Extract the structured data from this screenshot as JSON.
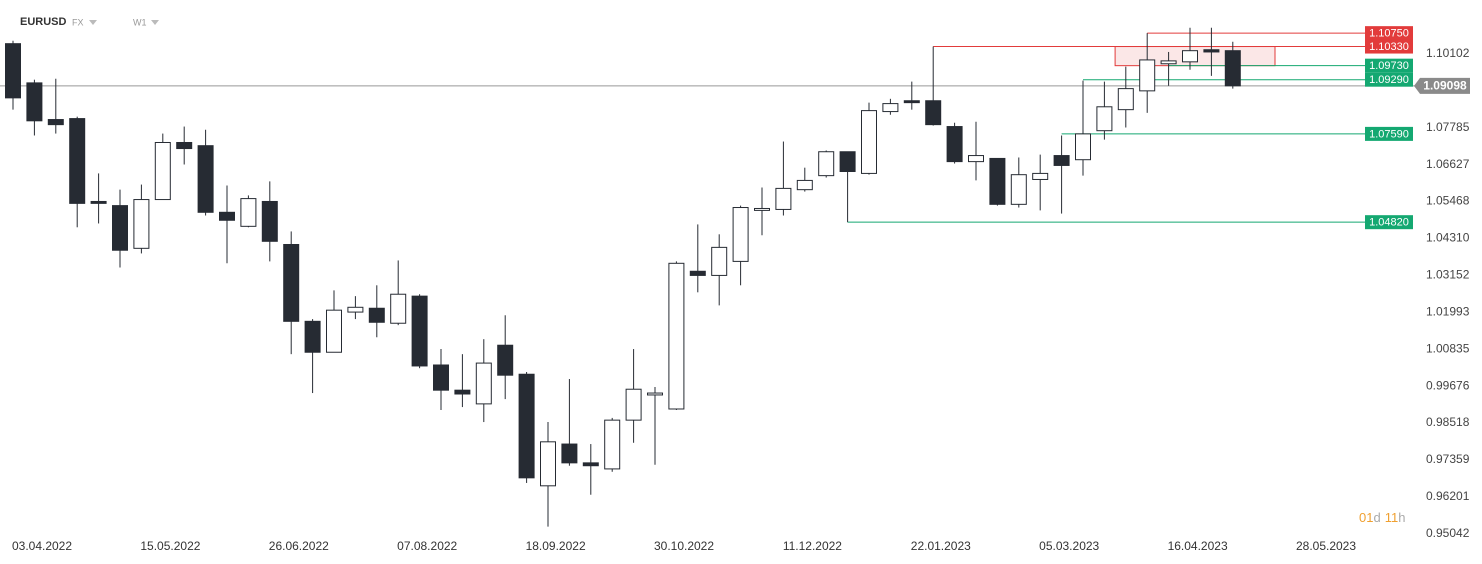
{
  "header": {
    "symbol": "EURUSD",
    "market": "FX",
    "interval": "W1"
  },
  "countdown": [
    "01",
    "d",
    "11",
    "h"
  ],
  "chart_data": {
    "type": "candlestick",
    "categories": [
      null,
      "03.04.2022",
      null,
      null,
      null,
      null,
      null,
      "15.05.2022",
      null,
      null,
      null,
      null,
      null,
      "26.06.2022",
      null,
      null,
      null,
      null,
      null,
      "07.08.2022",
      null,
      null,
      null,
      null,
      null,
      "18.09.2022",
      null,
      null,
      null,
      null,
      null,
      "30.10.2022",
      null,
      null,
      null,
      null,
      null,
      "11.12.2022",
      null,
      null,
      null,
      null,
      null,
      "22.01.2023",
      null,
      null,
      null,
      null,
      null,
      "05.03.2023",
      null,
      null,
      null,
      null,
      null,
      "16.04.2023",
      null,
      null,
      null,
      null,
      null,
      "28.05.2023"
    ],
    "open": [
      1.1042,
      1.0919,
      1.0804,
      1.0807,
      1.0547,
      1.0534,
      1.04,
      1.0553,
      1.0732,
      1.0722,
      1.0513,
      1.0469,
      1.0547,
      1.0412,
      1.0171,
      1.0074,
      1.02,
      1.0212,
      1.0165,
      1.025,
      1.0034,
      0.9955,
      0.9912,
      1.0096,
      1.0005,
      0.9655,
      0.9786,
      0.9727,
      0.9708,
      0.9861,
      0.994,
      0.9896,
      1.0328,
      1.0315,
      1.0359,
      1.0519,
      1.0522,
      1.0584,
      1.0628,
      1.0703,
      1.0635,
      1.0829,
      1.0863,
      1.0863,
      1.0782,
      1.0672,
      1.0682,
      1.0538,
      1.0616,
      1.0691,
      1.0678,
      1.0769,
      1.0835,
      1.0894,
      1.0979,
      1.0985,
      1.1023,
      1.102,
      null,
      null,
      null,
      null
    ],
    "high": [
      1.1051,
      1.0929,
      1.0932,
      1.0813,
      1.0635,
      1.0584,
      1.06,
      1.076,
      1.0782,
      1.0772,
      1.0597,
      1.0566,
      1.061,
      1.0453,
      1.0178,
      1.0268,
      1.025,
      1.0284,
      1.0362,
      1.0256,
      1.0084,
      1.0068,
      1.0115,
      1.019,
      1.0012,
      0.9855,
      0.999,
      0.9786,
      0.9868,
      1.0084,
      0.9965,
      1.0359,
      1.0475,
      1.0444,
      1.0534,
      1.0591,
      1.0735,
      1.0653,
      1.0707,
      1.0703,
      1.0857,
      1.0869,
      1.0923,
      1.1033,
      1.0794,
      1.0797,
      1.0682,
      1.0685,
      1.0694,
      1.0754,
      1.0926,
      1.0923,
      1.097,
      1.1075,
      1.1016,
      1.1092,
      1.1092,
      1.1048,
      null,
      null,
      null,
      null
    ],
    "low": [
      1.0835,
      1.0754,
      1.076,
      1.0466,
      1.0478,
      1.034,
      1.0384,
      1.0553,
      1.0663,
      1.0503,
      1.0353,
      1.0466,
      1.0359,
      1.0068,
      0.9946,
      1.0074,
      1.0178,
      1.0121,
      1.0159,
      1.0024,
      0.9893,
      0.9902,
      0.9855,
      0.9927,
      0.9664,
      0.9527,
      0.9718,
      0.9627,
      0.9699,
      0.979,
      0.9721,
      0.9893,
      1.0262,
      1.0221,
      1.0284,
      1.0441,
      1.0503,
      1.0578,
      1.0622,
      1.0482,
      1.0631,
      1.0819,
      1.0835,
      1.0785,
      1.0666,
      1.0613,
      1.0534,
      1.0528,
      1.0519,
      1.0509,
      1.0628,
      1.0741,
      1.0779,
      1.0825,
      1.091,
      1.096,
      1.0941,
      1.0901,
      null,
      null,
      null,
      null
    ],
    "close": [
      1.0872,
      1.08,
      1.0788,
      1.0541,
      1.0541,
      1.0394,
      1.0553,
      1.0732,
      1.0713,
      1.0513,
      1.0488,
      1.0556,
      1.0422,
      1.0171,
      1.0074,
      1.0206,
      1.0215,
      1.0168,
      1.0256,
      1.0031,
      0.9955,
      0.9943,
      1.004,
      1.0002,
      0.968,
      0.9793,
      0.9727,
      0.9718,
      0.9861,
      0.9958,
      0.9946,
      1.0353,
      1.0315,
      1.0403,
      1.0528,
      1.0525,
      1.0588,
      1.0613,
      1.0703,
      1.0641,
      1.0832,
      1.0854,
      1.0857,
      1.0788,
      1.0672,
      1.0691,
      1.0538,
      1.0631,
      1.0635,
      1.066,
      1.0759,
      1.0844,
      1.0901,
      1.0991,
      1.0988,
      1.102,
      1.1016,
      1.09098,
      null,
      null,
      null,
      null
    ],
    "up_color": "#ffffff",
    "down_color": "#262b33",
    "ylim": [
      0.9485,
      1.1179
    ],
    "yticks": [
      1.10102,
      1.07785,
      1.06627,
      1.05468,
      {
        "value": 1.0431,
        "label": "1.04310"
      },
      1.03152,
      1.01993,
      1.00835,
      0.99676,
      0.98518,
      0.97359,
      0.96201,
      0.95042
    ],
    "grid": false,
    "last_price": 1.09098,
    "levels": [
      {
        "value": 1.1075,
        "label": "1.10750",
        "color": "#e23b3b"
      },
      {
        "value": 1.1033,
        "label": "1.10330",
        "color": "#e23b3b"
      },
      {
        "value": 1.0973,
        "label": "1.09730",
        "color": "#14a871"
      },
      {
        "value": 1.0929,
        "label": "1.09290",
        "color": "#14a871"
      },
      {
        "value": 1.0759,
        "label": "1.07590",
        "color": "#14a871"
      },
      {
        "value": 1.0482,
        "label": "1.04820",
        "color": "#14a871"
      }
    ]
  }
}
